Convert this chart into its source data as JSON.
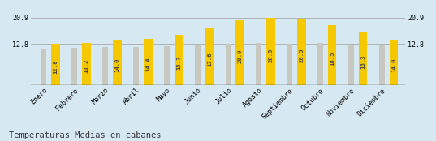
{
  "categories": [
    "Enero",
    "Febrero",
    "Marzo",
    "Abril",
    "Mayo",
    "Junio",
    "Julio",
    "Agosto",
    "Septiembre",
    "Octubre",
    "Noviembre",
    "Diciembre"
  ],
  "values": [
    12.8,
    13.2,
    14.0,
    14.4,
    15.7,
    17.6,
    20.0,
    20.9,
    20.5,
    18.5,
    16.3,
    14.0
  ],
  "gray_values": [
    11.2,
    11.5,
    11.8,
    11.8,
    12.2,
    12.6,
    12.8,
    13.0,
    12.8,
    13.2,
    12.6,
    12.4
  ],
  "bar_color_yellow": "#F5C800",
  "bar_color_gray": "#C8C8C0",
  "background_color": "#D6E8F2",
  "title": "Temperaturas Medias en cabanes",
  "ylim_max_display": 20.9,
  "yticks": [
    12.8,
    20.9
  ],
  "gridline_color": "#AAAAAA",
  "title_fontsize": 7.5,
  "tick_fontsize": 6.0,
  "bar_label_fontsize": 5.2,
  "bar_label_color": "#444444",
  "yellow_bar_width": 0.28,
  "gray_bar_width": 0.18,
  "bar_gap": 0.16
}
